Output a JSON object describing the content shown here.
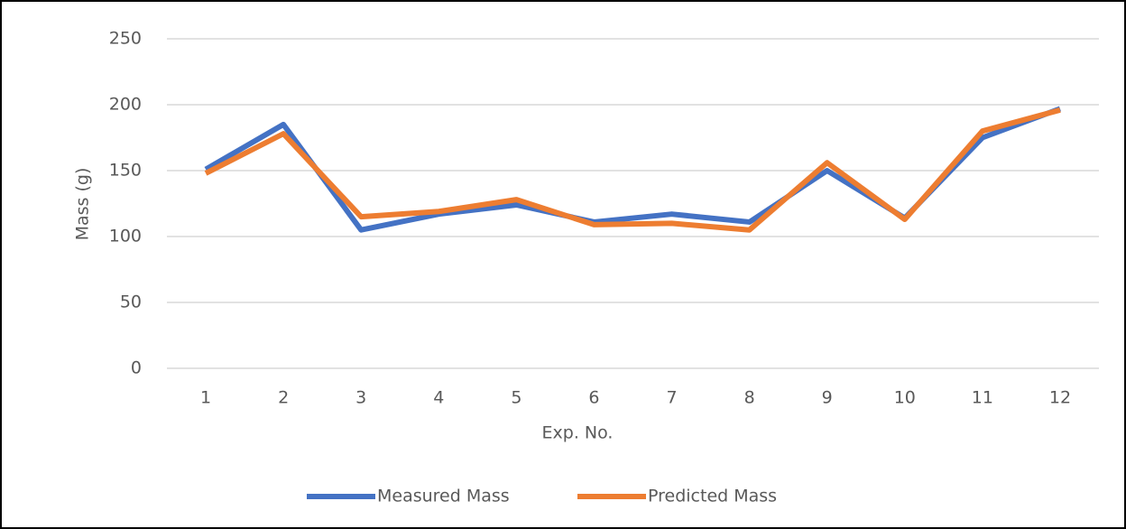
{
  "chart_data": {
    "type": "line",
    "x_label": "Exp. No.",
    "y_label": "Mass (g)",
    "categories": [
      "1",
      "2",
      "3",
      "4",
      "5",
      "6",
      "7",
      "8",
      "9",
      "10",
      "11",
      "12"
    ],
    "series": [
      {
        "name": "Measured Mass",
        "color": "#4472c4",
        "values": [
          151,
          185,
          105,
          117,
          124,
          111,
          117,
          111,
          150,
          114,
          175,
          197
        ]
      },
      {
        "name": "Predicted Mass",
        "color": "#ed7d31",
        "values": [
          148,
          178,
          115,
          119,
          128,
          109,
          110,
          105,
          156,
          113,
          180,
          196
        ]
      }
    ],
    "ylim": [
      0,
      250
    ],
    "yticks": [
      0,
      50,
      100,
      150,
      200,
      250
    ],
    "grid": true,
    "legend": "bottom"
  }
}
